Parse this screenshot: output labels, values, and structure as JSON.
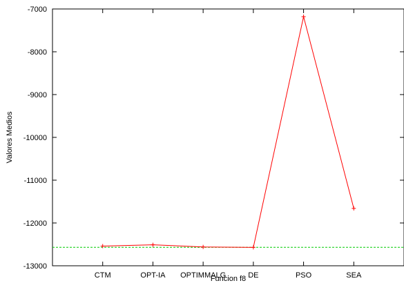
{
  "chart_data": {
    "type": "line",
    "categories": [
      "CTM",
      "OPT-IA",
      "OPTIMMALG",
      "DE",
      "PSO",
      "SEA"
    ],
    "series": [
      {
        "values": [
          -12540,
          -12510,
          -12560,
          -12570,
          -7180,
          -11660
        ],
        "color": "#ff0000",
        "marker": "plus"
      }
    ],
    "reference_line": {
      "value": -12569.5,
      "color": "#00cc00",
      "style": "dashed"
    },
    "xlabel": "Funcion f8",
    "ylabel": "Valores Medios",
    "ylim": [
      -13000,
      -7000
    ],
    "yticks": [
      -7000,
      -8000,
      -9000,
      -10000,
      -11000,
      -12000,
      -13000
    ],
    "grid": false
  }
}
